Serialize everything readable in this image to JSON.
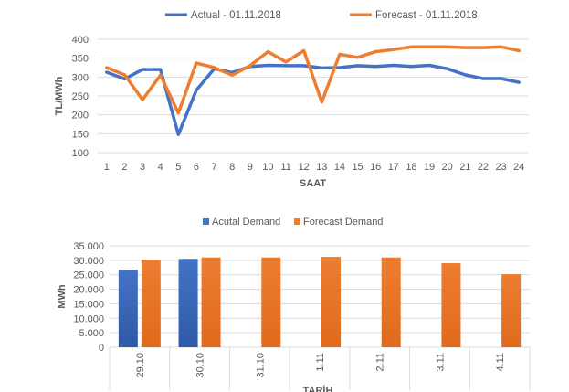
{
  "chart_data": [
    {
      "type": "line",
      "title": "",
      "xlabel": "SAAT",
      "ylabel": "TL/MWh",
      "ylim": [
        100,
        400
      ],
      "yticks": [
        "100",
        "150",
        "200",
        "250",
        "300",
        "350",
        "400"
      ],
      "categories": [
        "1",
        "2",
        "3",
        "4",
        "5",
        "6",
        "7",
        "8",
        "9",
        "10",
        "11",
        "12",
        "13",
        "14",
        "15",
        "16",
        "17",
        "18",
        "19",
        "20",
        "21",
        "22",
        "23",
        "24"
      ],
      "grid": true,
      "legend": "top",
      "series": [
        {
          "name": "Actual - 01.11.2018",
          "color": "#4472c4",
          "values": [
            313,
            295,
            320,
            320,
            148,
            265,
            322,
            312,
            328,
            331,
            330,
            330,
            324,
            325,
            330,
            328,
            331,
            328,
            331,
            322,
            306,
            296,
            296,
            286
          ]
        },
        {
          "name": "Forecast - 01.11.2018",
          "color": "#ed7d31",
          "values": [
            325,
            306,
            240,
            305,
            205,
            337,
            325,
            305,
            330,
            367,
            340,
            370,
            234,
            360,
            352,
            367,
            373,
            380,
            380,
            380,
            378,
            378,
            380,
            370
          ]
        }
      ]
    },
    {
      "type": "bar",
      "title": "",
      "xlabel": "TARİH",
      "ylabel": "MWh",
      "ylim": [
        0,
        35000
      ],
      "yticks": [
        "0",
        "5.000",
        "10.000",
        "15.000",
        "20.000",
        "25.000",
        "30.000",
        "35.000"
      ],
      "categories": [
        "29.10",
        "30.10",
        "31.10",
        "1.11",
        "2.11",
        "3.11",
        "4.11"
      ],
      "grid": true,
      "legend": "top",
      "series": [
        {
          "name": "Acutal Demand",
          "color": "#4472c4",
          "values": [
            26800,
            30500,
            null,
            null,
            null,
            null,
            null
          ]
        },
        {
          "name": "Forecast Demand",
          "color": "#ed7d31",
          "values": [
            30200,
            31000,
            31000,
            31200,
            31000,
            29000,
            25200
          ]
        }
      ]
    }
  ]
}
